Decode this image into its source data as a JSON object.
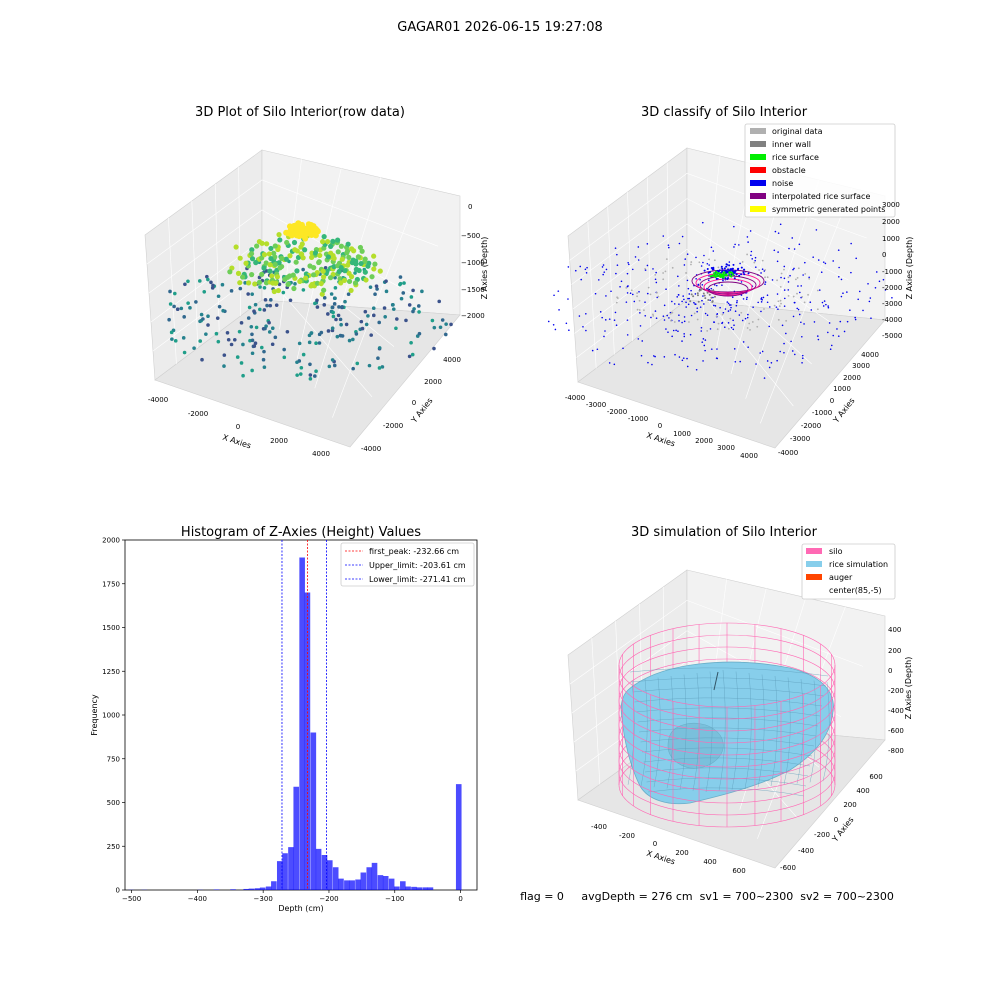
{
  "figure": {
    "suptitle": "GAGAR01 2026-06-15 19:27:08"
  },
  "panel1": {
    "title": "3D Plot of Silo Interior(row data)",
    "xlabel": "X Axies",
    "ylabel": "Y Axies",
    "zlabel": "Z Axies (Depth)",
    "x_ticks": [
      "-4000",
      "-2000",
      "0",
      "2000",
      "4000"
    ],
    "y_ticks": [
      "-4000",
      "-2000",
      "0",
      "2000",
      "4000"
    ],
    "z_ticks": [
      "0",
      "−500",
      "−1000",
      "−1500",
      "−2000"
    ]
  },
  "panel2": {
    "title": "3D classify of Silo Interior",
    "xlabel": "X Axies",
    "ylabel": "Y Axies",
    "zlabel": "Z Axies (Depth)",
    "x_ticks": [
      "-4000",
      "-3000",
      "-2000",
      "-1000",
      "0",
      "1000",
      "2000",
      "3000",
      "4000"
    ],
    "y_ticks": [
      "-4000",
      "-3000",
      "-2000",
      "-1000",
      "0",
      "1000",
      "2000",
      "3000",
      "4000"
    ],
    "z_ticks": [
      "3000",
      "2000",
      "1000",
      "0",
      "-1000",
      "-2000",
      "-3000",
      "-4000",
      "-5000"
    ],
    "legend": [
      {
        "label": "original data",
        "color": "#b0b0b0"
      },
      {
        "label": "inner wall",
        "color": "#808080"
      },
      {
        "label": "rice surface",
        "color": "#00ee00"
      },
      {
        "label": "obstacle",
        "color": "#ff0000"
      },
      {
        "label": "noise",
        "color": "#0000ee"
      },
      {
        "label": "interpolated rice surface",
        "color": "#800080"
      },
      {
        "label": "symmetric generated points",
        "color": "#ffff00"
      }
    ]
  },
  "panel4": {
    "title": "3D simulation of Silo Interior",
    "xlabel": "X Axies",
    "ylabel": "Y Axies",
    "zlabel": "Z Axies (Depth)",
    "x_ticks": [
      "-400",
      "-200",
      "0",
      "200",
      "400",
      "600"
    ],
    "y_ticks": [
      "-600",
      "-400",
      "-200",
      "0",
      "200",
      "400",
      "600"
    ],
    "z_ticks": [
      "400",
      "200",
      "0",
      "-200",
      "-400",
      "-600",
      "-800"
    ],
    "legend": [
      {
        "label": "silo",
        "color": "#ff69b4"
      },
      {
        "label": "rice simulation",
        "color": "#87ceeb"
      },
      {
        "label": "auger",
        "color": "#ff4500"
      },
      {
        "label": "center(85,-5)",
        "color": ""
      }
    ]
  },
  "status": {
    "text": "flag = 0     avgDepth = 276 cm  sv1 = 700~2300  sv2 = 700~2300"
  },
  "chart_data": [
    {
      "type": "histogram",
      "title": "Histogram of Z-Axies (Height) Values",
      "xlabel": "Depth (cm)",
      "ylabel": "Frequency",
      "xlim": [
        -510,
        25
      ],
      "ylim": [
        0,
        2000
      ],
      "x_ticks": [
        -500,
        -400,
        -300,
        -200,
        -100,
        0
      ],
      "y_ticks": [
        0,
        250,
        500,
        750,
        1000,
        1250,
        1500,
        1750,
        2000
      ],
      "bar_color": "#0000ff",
      "bin_width": 8.5,
      "bins": [
        [
          -505,
          1
        ],
        [
          -485,
          1
        ],
        [
          -400,
          1
        ],
        [
          -375,
          3
        ],
        [
          -350,
          4
        ],
        [
          -330,
          6
        ],
        [
          -322,
          8
        ],
        [
          -313,
          10
        ],
        [
          -305,
          14
        ],
        [
          -296,
          20
        ],
        [
          -288,
          50
        ],
        [
          -279,
          165
        ],
        [
          -271,
          210
        ],
        [
          -262,
          245
        ],
        [
          -254,
          590
        ],
        [
          -245,
          1900
        ],
        [
          -237,
          1700
        ],
        [
          -228,
          900
        ],
        [
          -220,
          235
        ],
        [
          -211,
          200
        ],
        [
          -203,
          170
        ],
        [
          -194,
          130
        ],
        [
          -186,
          65
        ],
        [
          -177,
          55
        ],
        [
          -169,
          55
        ],
        [
          -160,
          60
        ],
        [
          -152,
          100
        ],
        [
          -143,
          130
        ],
        [
          -135,
          155
        ],
        [
          -126,
          85
        ],
        [
          -118,
          80
        ],
        [
          -109,
          65
        ],
        [
          -101,
          20
        ],
        [
          -92,
          50
        ],
        [
          -84,
          20
        ],
        [
          -75,
          18
        ],
        [
          -67,
          15
        ],
        [
          -58,
          15
        ],
        [
          -50,
          15
        ],
        [
          -7,
          605
        ]
      ],
      "vlines": [
        {
          "label": "first_peak: -232.66 cm",
          "x": -232.66,
          "color": "#ff0000"
        },
        {
          "label": "Upper_limit: -203.61 cm",
          "x": -203.61,
          "color": "#0000ff"
        },
        {
          "label": "Lower_limit: -271.41 cm",
          "x": -271.41,
          "color": "#0000ff"
        }
      ]
    }
  ]
}
